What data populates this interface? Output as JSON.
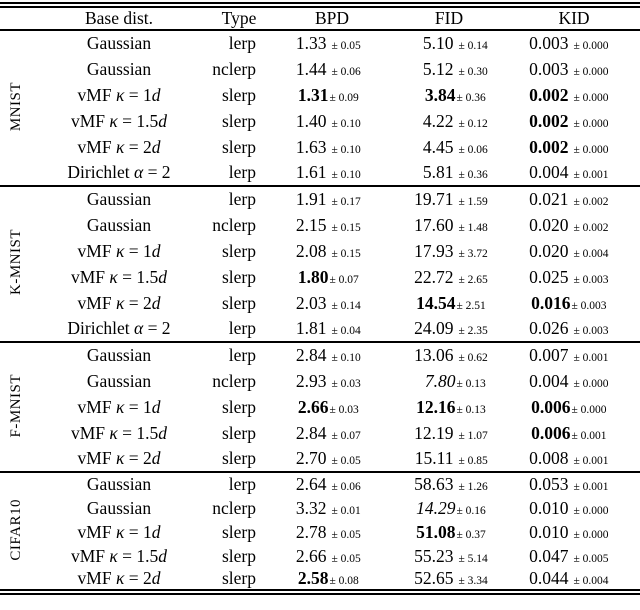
{
  "colors": {
    "text": "#000000",
    "background": "#ffffff",
    "rule": "#000000"
  },
  "table": {
    "columns": [
      "",
      "Base dist.",
      "Type",
      "BPD",
      "FID",
      "KID"
    ],
    "sections": [
      {
        "dataset": "MNIST",
        "rows": [
          {
            "base": [
              {
                "t": "Gaussian"
              }
            ],
            "type": "lerp",
            "bpd": {
              "v": "1.33",
              "pm": "± 0.05"
            },
            "fid": {
              "v": "5.10",
              "pm": "± 0.14"
            },
            "kid": {
              "v": "0.003",
              "pm": "± 0.000"
            }
          },
          {
            "base": [
              {
                "t": "Gaussian"
              }
            ],
            "type": "nclerp",
            "bpd": {
              "v": "1.44",
              "pm": "± 0.06"
            },
            "fid": {
              "v": "5.12",
              "pm": "± 0.30"
            },
            "kid": {
              "v": "0.003",
              "pm": "± 0.000"
            }
          },
          {
            "base": [
              {
                "t": "vMF "
              },
              {
                "t": "κ",
                "i": true
              },
              {
                "t": " = 1"
              },
              {
                "t": "d",
                "i": true
              }
            ],
            "type": "slerp",
            "bpd": {
              "v": "1.31",
              "pm": "± 0.09",
              "b": true,
              "t": true
            },
            "fid": {
              "v": "3.84",
              "pm": "± 0.36",
              "b": true,
              "t": true
            },
            "kid": {
              "v": "0.002",
              "pm": "± 0.000",
              "b": true
            }
          },
          {
            "base": [
              {
                "t": "vMF "
              },
              {
                "t": "κ",
                "i": true
              },
              {
                "t": " = 1.5"
              },
              {
                "t": "d",
                "i": true
              }
            ],
            "type": "slerp",
            "bpd": {
              "v": "1.40",
              "pm": "± 0.10"
            },
            "fid": {
              "v": "4.22",
              "pm": "± 0.12"
            },
            "kid": {
              "v": "0.002",
              "pm": "± 0.000",
              "b": true
            }
          },
          {
            "base": [
              {
                "t": "vMF "
              },
              {
                "t": "κ",
                "i": true
              },
              {
                "t": " = 2"
              },
              {
                "t": "d",
                "i": true
              }
            ],
            "type": "slerp",
            "bpd": {
              "v": "1.63",
              "pm": "± 0.10"
            },
            "fid": {
              "v": "4.45",
              "pm": "± 0.06"
            },
            "kid": {
              "v": "0.002",
              "pm": "± 0.000",
              "b": true
            }
          },
          {
            "base": [
              {
                "t": "Dirichlet "
              },
              {
                "t": "α",
                "i": true
              },
              {
                "t": " = 2"
              }
            ],
            "type": "lerp",
            "bpd": {
              "v": "1.61",
              "pm": "± 0.10"
            },
            "fid": {
              "v": "5.81",
              "pm": "± 0.36"
            },
            "kid": {
              "v": "0.004",
              "pm": "± 0.001"
            }
          }
        ]
      },
      {
        "dataset": "K-MNIST",
        "rows": [
          {
            "base": [
              {
                "t": "Gaussian"
              }
            ],
            "type": "lerp",
            "bpd": {
              "v": "1.91",
              "pm": "± 0.17"
            },
            "fid": {
              "v": "19.71",
              "pm": "± 1.59"
            },
            "kid": {
              "v": "0.021",
              "pm": "± 0.002"
            }
          },
          {
            "base": [
              {
                "t": "Gaussian"
              }
            ],
            "type": "nclerp",
            "bpd": {
              "v": "2.15",
              "pm": "± 0.15"
            },
            "fid": {
              "v": "17.60",
              "pm": "± 1.48"
            },
            "kid": {
              "v": "0.020",
              "pm": "± 0.002"
            }
          },
          {
            "base": [
              {
                "t": "vMF "
              },
              {
                "t": "κ",
                "i": true
              },
              {
                "t": " = 1"
              },
              {
                "t": "d",
                "i": true
              }
            ],
            "type": "slerp",
            "bpd": {
              "v": "2.08",
              "pm": "± 0.15"
            },
            "fid": {
              "v": "17.93",
              "pm": "± 3.72"
            },
            "kid": {
              "v": "0.020",
              "pm": "± 0.004"
            }
          },
          {
            "base": [
              {
                "t": "vMF "
              },
              {
                "t": "κ",
                "i": true
              },
              {
                "t": " = 1.5"
              },
              {
                "t": "d",
                "i": true
              }
            ],
            "type": "slerp",
            "bpd": {
              "v": "1.80",
              "pm": "± 0.07",
              "b": true,
              "t": true
            },
            "fid": {
              "v": "22.72",
              "pm": "± 2.65"
            },
            "kid": {
              "v": "0.025",
              "pm": "± 0.003"
            }
          },
          {
            "base": [
              {
                "t": "vMF "
              },
              {
                "t": "κ",
                "i": true
              },
              {
                "t": " = 2"
              },
              {
                "t": "d",
                "i": true
              }
            ],
            "type": "slerp",
            "bpd": {
              "v": "2.03",
              "pm": "± 0.14"
            },
            "fid": {
              "v": "14.54",
              "pm": "± 2.51",
              "b": true,
              "t": true
            },
            "kid": {
              "v": "0.016",
              "pm": "± 0.003",
              "b": true,
              "t": true
            }
          },
          {
            "base": [
              {
                "t": "Dirichlet "
              },
              {
                "t": "α",
                "i": true
              },
              {
                "t": " = 2"
              }
            ],
            "type": "lerp",
            "bpd": {
              "v": "1.81",
              "pm": "± 0.04"
            },
            "fid": {
              "v": "24.09",
              "pm": "± 2.35"
            },
            "kid": {
              "v": "0.026",
              "pm": "± 0.003"
            }
          }
        ]
      },
      {
        "dataset": "F-MNIST",
        "rows": [
          {
            "base": [
              {
                "t": "Gaussian"
              }
            ],
            "type": "lerp",
            "bpd": {
              "v": "2.84",
              "pm": "± 0.10"
            },
            "fid": {
              "v": "13.06",
              "pm": "± 0.62"
            },
            "kid": {
              "v": "0.007",
              "pm": "± 0.001"
            }
          },
          {
            "base": [
              {
                "t": "Gaussian"
              }
            ],
            "type": "nclerp",
            "bpd": {
              "v": "2.93",
              "pm": "± 0.03"
            },
            "fid": {
              "v": "7.80",
              "pm": "± 0.13",
              "i": true,
              "t": true
            },
            "kid": {
              "v": "0.004",
              "pm": "± 0.000"
            }
          },
          {
            "base": [
              {
                "t": "vMF "
              },
              {
                "t": "κ",
                "i": true
              },
              {
                "t": " = 1"
              },
              {
                "t": "d",
                "i": true
              }
            ],
            "type": "slerp",
            "bpd": {
              "v": "2.66",
              "pm": "± 0.03",
              "b": true,
              "t": true
            },
            "fid": {
              "v": "12.16",
              "pm": "± 0.13",
              "b": true,
              "t": true
            },
            "kid": {
              "v": "0.006",
              "pm": "± 0.000",
              "b": true,
              "t": true
            }
          },
          {
            "base": [
              {
                "t": "vMF "
              },
              {
                "t": "κ",
                "i": true
              },
              {
                "t": " = 1.5"
              },
              {
                "t": "d",
                "i": true
              }
            ],
            "type": "slerp",
            "bpd": {
              "v": "2.84",
              "pm": "± 0.07"
            },
            "fid": {
              "v": "12.19",
              "pm": "± 1.07"
            },
            "kid": {
              "v": "0.006",
              "pm": "± 0.001",
              "b": true,
              "t": true
            }
          },
          {
            "base": [
              {
                "t": "vMF "
              },
              {
                "t": "κ",
                "i": true
              },
              {
                "t": " = 2"
              },
              {
                "t": "d",
                "i": true
              }
            ],
            "type": "slerp",
            "bpd": {
              "v": "2.70",
              "pm": "± 0.05"
            },
            "fid": {
              "v": "15.11",
              "pm": "± 0.85"
            },
            "kid": {
              "v": "0.008",
              "pm": "± 0.001"
            }
          }
        ]
      },
      {
        "dataset": "CIFAR10",
        "rows": [
          {
            "base": [
              {
                "t": "Gaussian"
              }
            ],
            "type": "lerp",
            "bpd": {
              "v": "2.64",
              "pm": "± 0.06"
            },
            "fid": {
              "v": "58.63",
              "pm": "± 1.26"
            },
            "kid": {
              "v": "0.053",
              "pm": "± 0.001"
            }
          },
          {
            "base": [
              {
                "t": "Gaussian"
              }
            ],
            "type": "nclerp",
            "bpd": {
              "v": "3.32",
              "pm": "± 0.01"
            },
            "fid": {
              "v": "14.29",
              "pm": "± 0.16",
              "i": true,
              "t": true
            },
            "kid": {
              "v": "0.010",
              "pm": "± 0.000"
            }
          },
          {
            "base": [
              {
                "t": "vMF "
              },
              {
                "t": "κ",
                "i": true
              },
              {
                "t": " = 1"
              },
              {
                "t": "d",
                "i": true
              }
            ],
            "type": "slerp",
            "bpd": {
              "v": "2.78",
              "pm": "± 0.05"
            },
            "fid": {
              "v": "51.08",
              "pm": "± 0.37",
              "b": true,
              "t": true
            },
            "kid": {
              "v": "0.010",
              "pm": "± 0.000"
            }
          },
          {
            "base": [
              {
                "t": "vMF "
              },
              {
                "t": "κ",
                "i": true
              },
              {
                "t": " = 1.5"
              },
              {
                "t": "d",
                "i": true
              }
            ],
            "type": "slerp",
            "bpd": {
              "v": "2.66",
              "pm": "± 0.05"
            },
            "fid": {
              "v": "55.23",
              "pm": "± 5.14"
            },
            "kid": {
              "v": "0.047",
              "pm": "± 0.005"
            }
          },
          {
            "base": [
              {
                "t": "vMF "
              },
              {
                "t": "κ",
                "i": true
              },
              {
                "t": " = 2"
              },
              {
                "t": "d",
                "i": true
              }
            ],
            "type": "slerp",
            "bpd": {
              "v": "2.58",
              "pm": "± 0.08",
              "b": true,
              "t": true
            },
            "fid": {
              "v": "52.65",
              "pm": "± 3.34"
            },
            "kid": {
              "v": "0.044",
              "pm": "± 0.004"
            }
          }
        ]
      }
    ]
  }
}
